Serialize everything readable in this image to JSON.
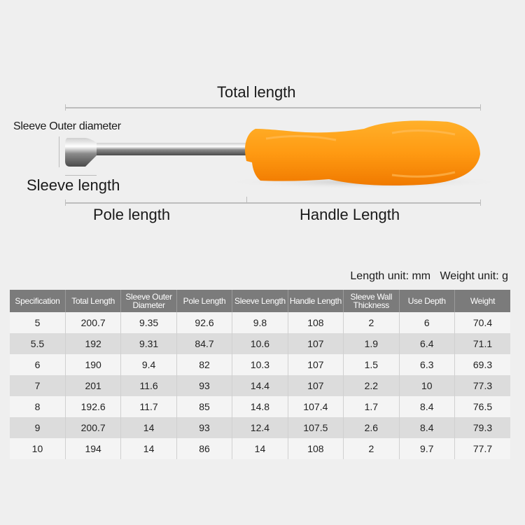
{
  "diagram": {
    "total_length": "Total length",
    "sleeve_outer_diameter": "Sleeve Outer diameter",
    "sleeve_length": "Sleeve length",
    "pole_length": "Pole length",
    "handle_length": "Handle Length",
    "handle_color": "#ff9a12"
  },
  "units": "Length unit: mm   Weight unit: g",
  "table": {
    "headers": [
      "Specification",
      "Total Length",
      "Sleeve Outer Diameter",
      "Pole Length",
      "Sleeve Length",
      "Handle Length",
      "Sleeve Wall Thickness",
      "Use Depth",
      "Weight"
    ],
    "rows": [
      [
        "5",
        "200.7",
        "9.35",
        "92.6",
        "9.8",
        "108",
        "2",
        "6",
        "70.4"
      ],
      [
        "5.5",
        "192",
        "9.31",
        "84.7",
        "10.6",
        "107",
        "1.9",
        "6.4",
        "71.1"
      ],
      [
        "6",
        "190",
        "9.4",
        "82",
        "10.3",
        "107",
        "1.5",
        "6.3",
        "69.3"
      ],
      [
        "7",
        "201",
        "11.6",
        "93",
        "14.4",
        "107",
        "2.2",
        "10",
        "77.3"
      ],
      [
        "8",
        "192.6",
        "11.7",
        "85",
        "14.8",
        "107.4",
        "1.7",
        "8.4",
        "76.5"
      ],
      [
        "9",
        "200.7",
        "14",
        "93",
        "12.4",
        "107.5",
        "2.6",
        "8.4",
        "79.3"
      ],
      [
        "10",
        "194",
        "14",
        "86",
        "14",
        "108",
        "2",
        "9.7",
        "77.7"
      ]
    ]
  }
}
